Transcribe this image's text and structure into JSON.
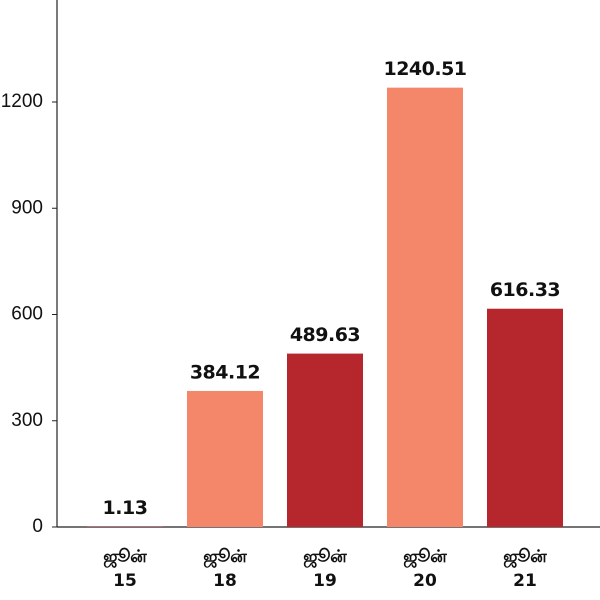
{
  "chart_data": {
    "type": "bar",
    "categories": [
      [
        "ஜூன்",
        "15"
      ],
      [
        "ஜூன்",
        "18"
      ],
      [
        "ஜூன்",
        "19"
      ],
      [
        "ஜூன்",
        "20"
      ],
      [
        "ஜூன்",
        "21"
      ]
    ],
    "values": [
      1.13,
      384.12,
      489.63,
      1240.51,
      616.33
    ],
    "colors": [
      "#b5272d",
      "#f4876a",
      "#b5272d",
      "#f4876a",
      "#b5272d"
    ],
    "ylim": [
      0,
      1488
    ],
    "yticks": [
      0,
      300,
      600,
      900,
      1200
    ]
  }
}
